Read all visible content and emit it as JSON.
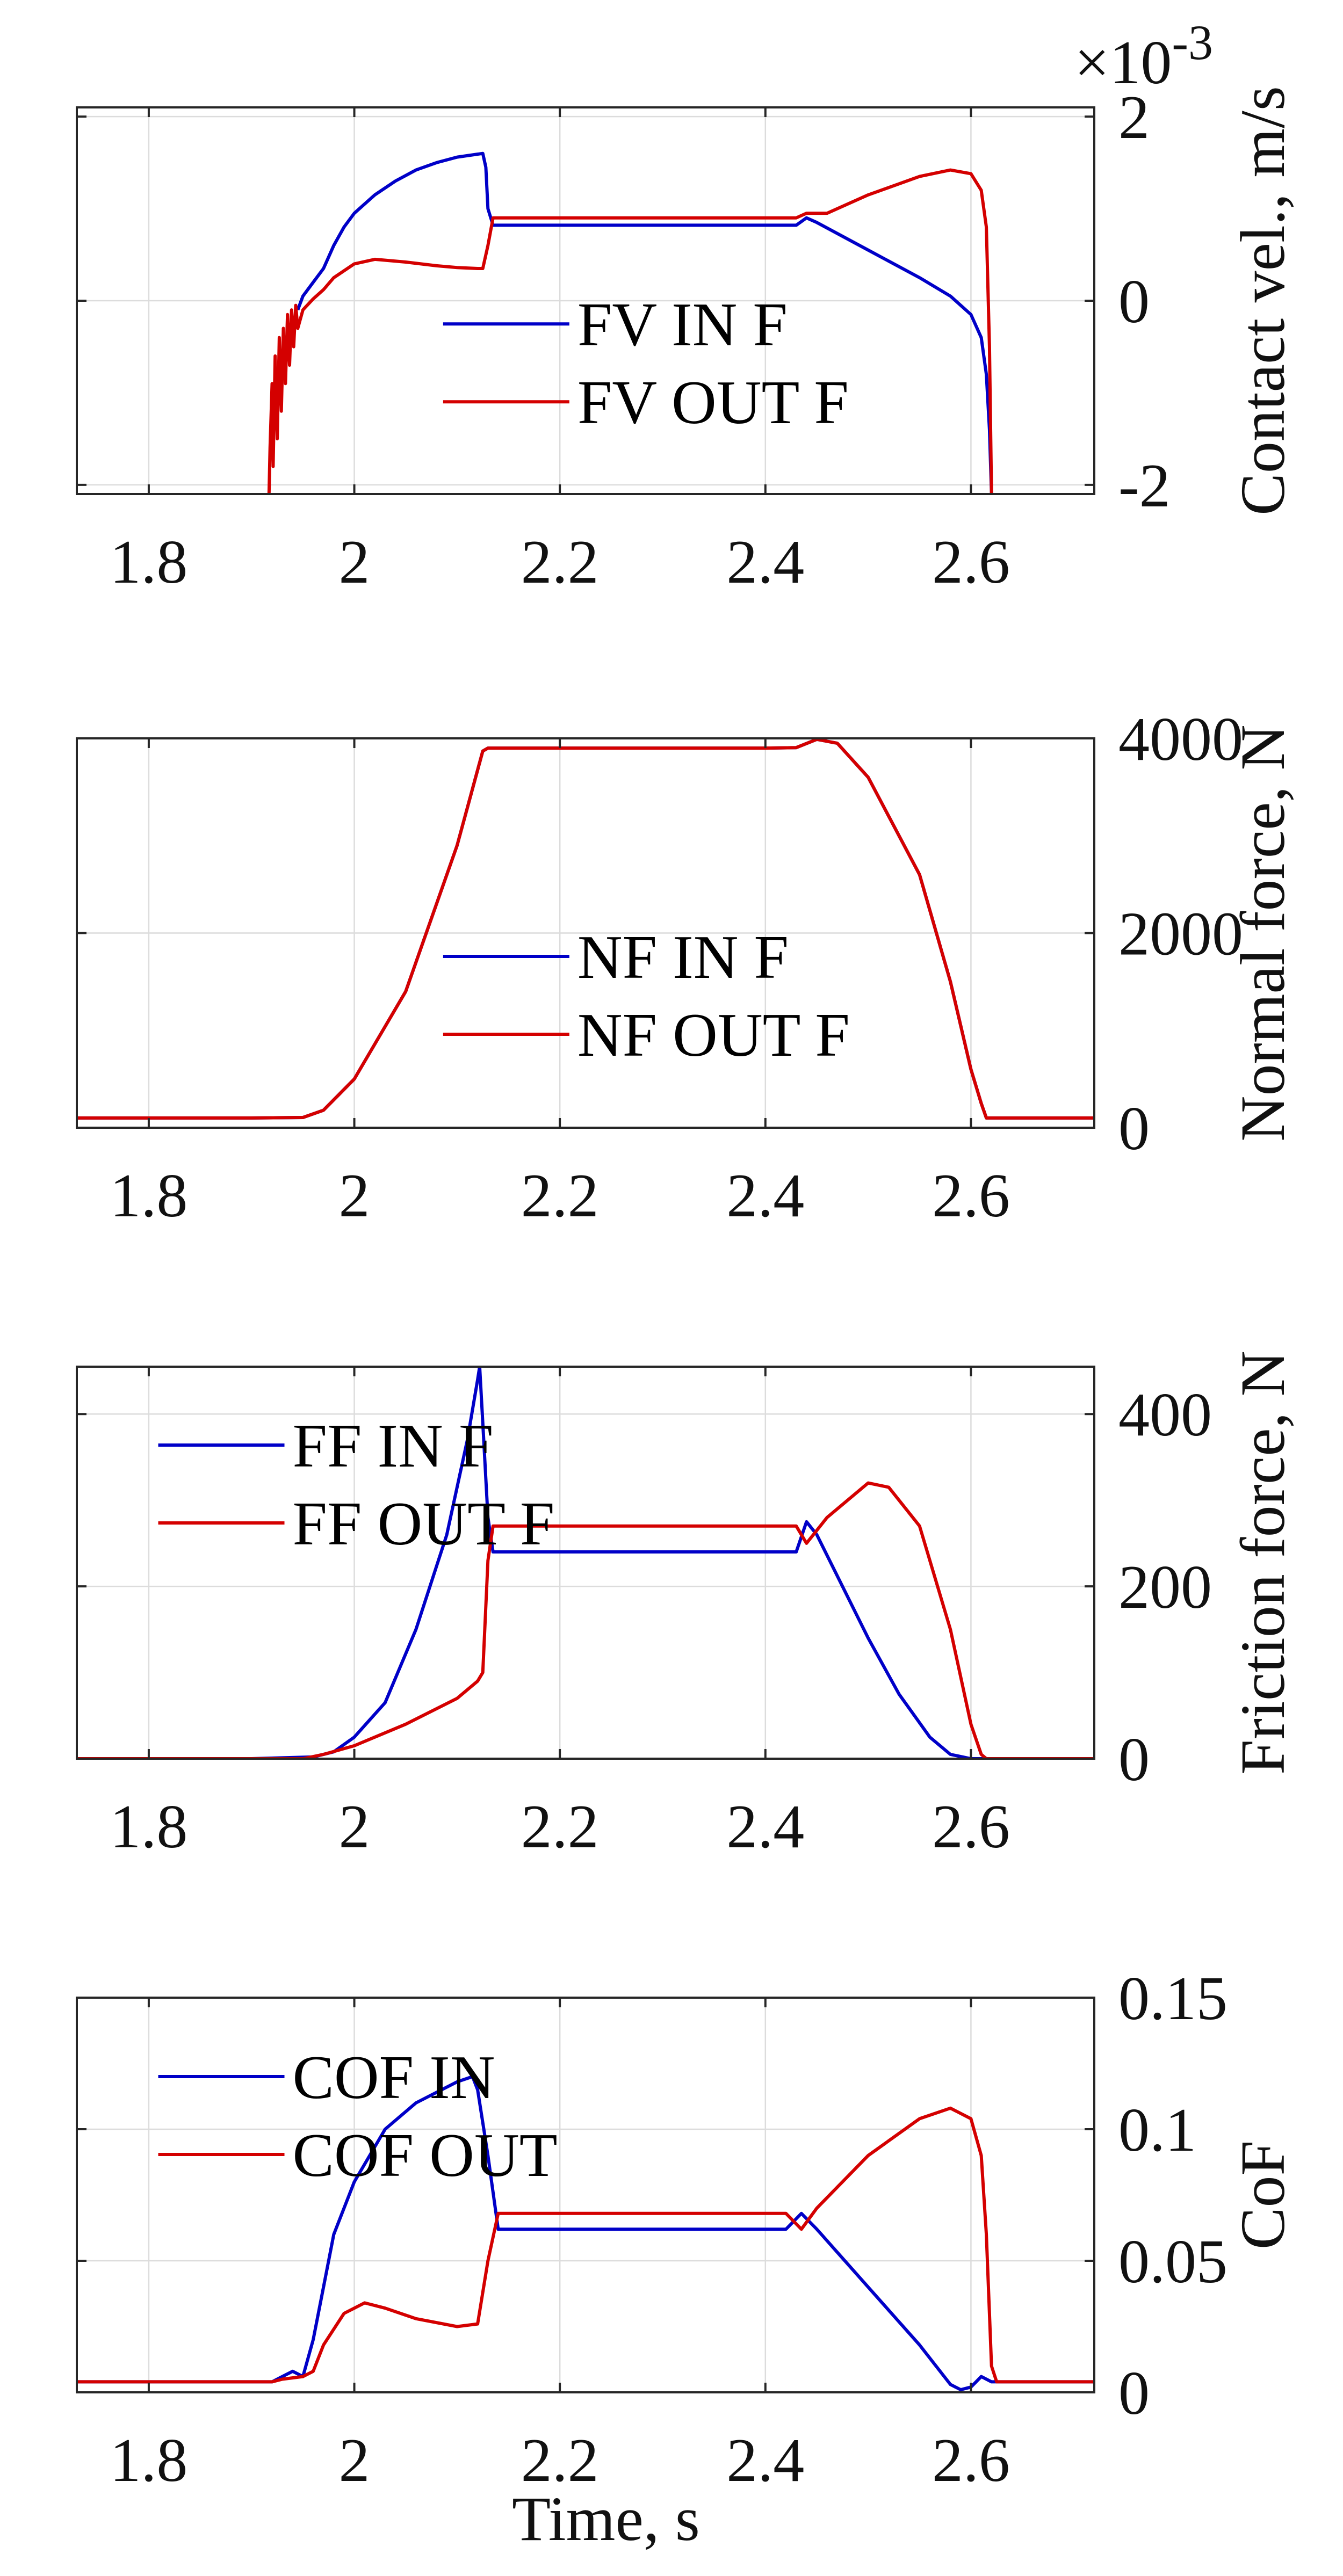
{
  "chart_data": [
    {
      "type": "line",
      "ylabel": "Contact vel., m/s",
      "y_multiplier": "×10",
      "y_multiplier_exp": "-3",
      "xlim": [
        1.73,
        2.72
      ],
      "ylim": [
        -2.1,
        2.1
      ],
      "xticks": [
        1.8,
        2.0,
        2.2,
        2.4,
        2.6
      ],
      "xtick_labels": [
        "1.8",
        "2",
        "2.2",
        "2.4",
        "2.6"
      ],
      "yticks": [
        -2,
        0,
        2
      ],
      "ytick_labels": [
        "-2",
        "0",
        "2"
      ],
      "grid": true,
      "legend_position": "center",
      "legend_pos": [
        0.36,
        0.28
      ],
      "series": [
        {
          "name": "FV IN F",
          "color": "#0000c8",
          "points": [
            [
              1.945,
              -0.1
            ],
            [
              1.95,
              0.05
            ],
            [
              1.96,
              0.2
            ],
            [
              1.97,
              0.35
            ],
            [
              1.98,
              0.6
            ],
            [
              1.99,
              0.8
            ],
            [
              2.0,
              0.95
            ],
            [
              2.02,
              1.15
            ],
            [
              2.04,
              1.3
            ],
            [
              2.06,
              1.42
            ],
            [
              2.08,
              1.5
            ],
            [
              2.1,
              1.56
            ],
            [
              2.125,
              1.6
            ],
            [
              2.128,
              1.45
            ],
            [
              2.13,
              1.0
            ],
            [
              2.135,
              0.82
            ],
            [
              2.2,
              0.82
            ],
            [
              2.3,
              0.82
            ],
            [
              2.4,
              0.82
            ],
            [
              2.43,
              0.82
            ],
            [
              2.44,
              0.9
            ],
            [
              2.45,
              0.85
            ],
            [
              2.5,
              0.55
            ],
            [
              2.55,
              0.25
            ],
            [
              2.58,
              0.05
            ],
            [
              2.6,
              -0.15
            ],
            [
              2.61,
              -0.4
            ],
            [
              2.615,
              -0.8
            ],
            [
              2.618,
              -1.4
            ],
            [
              2.62,
              -2.1
            ]
          ]
        },
        {
          "name": "FV OUT F",
          "color": "#d40000",
          "points": [
            [
              1.917,
              -2.1
            ],
            [
              1.918,
              -1.6
            ],
            [
              1.92,
              -0.9
            ],
            [
              1.921,
              -1.8
            ],
            [
              1.923,
              -0.6
            ],
            [
              1.925,
              -1.5
            ],
            [
              1.927,
              -0.4
            ],
            [
              1.929,
              -1.2
            ],
            [
              1.931,
              -0.3
            ],
            [
              1.933,
              -0.9
            ],
            [
              1.935,
              -0.15
            ],
            [
              1.937,
              -0.7
            ],
            [
              1.939,
              -0.1
            ],
            [
              1.941,
              -0.5
            ],
            [
              1.943,
              -0.05
            ],
            [
              1.945,
              -0.3
            ],
            [
              1.95,
              -0.1
            ],
            [
              1.96,
              0.02
            ],
            [
              1.97,
              0.12
            ],
            [
              1.98,
              0.25
            ],
            [
              2.0,
              0.4
            ],
            [
              2.02,
              0.45
            ],
            [
              2.05,
              0.42
            ],
            [
              2.08,
              0.38
            ],
            [
              2.1,
              0.36
            ],
            [
              2.12,
              0.35
            ],
            [
              2.125,
              0.35
            ],
            [
              2.13,
              0.6
            ],
            [
              2.135,
              0.9
            ],
            [
              2.2,
              0.9
            ],
            [
              2.3,
              0.9
            ],
            [
              2.4,
              0.9
            ],
            [
              2.43,
              0.9
            ],
            [
              2.44,
              0.95
            ],
            [
              2.46,
              0.95
            ],
            [
              2.5,
              1.15
            ],
            [
              2.55,
              1.35
            ],
            [
              2.58,
              1.42
            ],
            [
              2.6,
              1.38
            ],
            [
              2.61,
              1.2
            ],
            [
              2.615,
              0.8
            ],
            [
              2.618,
              -0.5
            ],
            [
              2.62,
              -2.1
            ]
          ]
        }
      ]
    },
    {
      "type": "line",
      "ylabel": "Normal force, N",
      "xlim": [
        1.73,
        2.72
      ],
      "ylim": [
        0,
        4000
      ],
      "xticks": [
        1.8,
        2.0,
        2.2,
        2.4,
        2.6
      ],
      "xtick_labels": [
        "1.8",
        "2",
        "2.2",
        "2.4",
        "2.6"
      ],
      "yticks": [
        0,
        2000,
        4000
      ],
      "ytick_labels": [
        "0",
        "2000",
        "4000"
      ],
      "grid": true,
      "legend_position": "center",
      "legend_pos": [
        0.36,
        0.28
      ],
      "series": [
        {
          "name": "NF IN F",
          "color": "#0000c8",
          "points": [
            [
              1.73,
              100
            ],
            [
              1.9,
              100
            ],
            [
              1.95,
              105
            ],
            [
              1.97,
              180
            ],
            [
              2.0,
              500
            ],
            [
              2.05,
              1400
            ],
            [
              2.1,
              2900
            ],
            [
              2.125,
              3870
            ],
            [
              2.13,
              3900
            ],
            [
              2.2,
              3900
            ],
            [
              2.3,
              3900
            ],
            [
              2.4,
              3900
            ],
            [
              2.43,
              3905
            ],
            [
              2.45,
              3990
            ],
            [
              2.47,
              3950
            ],
            [
              2.5,
              3600
            ],
            [
              2.55,
              2600
            ],
            [
              2.58,
              1500
            ],
            [
              2.6,
              600
            ],
            [
              2.61,
              250
            ],
            [
              2.615,
              100
            ],
            [
              2.72,
              100
            ]
          ]
        },
        {
          "name": "NF OUT F",
          "color": "#d40000",
          "points": [
            [
              1.73,
              100
            ],
            [
              1.9,
              100
            ],
            [
              1.95,
              105
            ],
            [
              1.97,
              180
            ],
            [
              2.0,
              500
            ],
            [
              2.05,
              1400
            ],
            [
              2.1,
              2900
            ],
            [
              2.125,
              3870
            ],
            [
              2.13,
              3900
            ],
            [
              2.2,
              3900
            ],
            [
              2.3,
              3900
            ],
            [
              2.4,
              3900
            ],
            [
              2.43,
              3905
            ],
            [
              2.45,
              3990
            ],
            [
              2.47,
              3950
            ],
            [
              2.5,
              3600
            ],
            [
              2.55,
              2600
            ],
            [
              2.58,
              1500
            ],
            [
              2.6,
              600
            ],
            [
              2.61,
              250
            ],
            [
              2.615,
              100
            ],
            [
              2.72,
              100
            ]
          ]
        }
      ]
    },
    {
      "type": "line",
      "ylabel": "Friction force, N",
      "xlim": [
        1.73,
        2.72
      ],
      "ylim": [
        0,
        455
      ],
      "xticks": [
        1.8,
        2.0,
        2.2,
        2.4,
        2.6
      ],
      "xtick_labels": [
        "1.8",
        "2",
        "2.2",
        "2.4",
        "2.6"
      ],
      "yticks": [
        0,
        200,
        400
      ],
      "ytick_labels": [
        "0",
        "200",
        "400"
      ],
      "grid": true,
      "legend_position": "top-left",
      "legend_pos": [
        0.08,
        0.2
      ],
      "series": [
        {
          "name": "FF IN F",
          "color": "#0000c8",
          "points": [
            [
              1.73,
              0
            ],
            [
              1.9,
              0
            ],
            [
              1.96,
              2
            ],
            [
              1.98,
              8
            ],
            [
              2.0,
              25
            ],
            [
              2.03,
              65
            ],
            [
              2.06,
              150
            ],
            [
              2.09,
              260
            ],
            [
              2.11,
              370
            ],
            [
              2.12,
              440
            ],
            [
              2.122,
              455
            ],
            [
              2.125,
              390
            ],
            [
              2.13,
              280
            ],
            [
              2.135,
              240
            ],
            [
              2.2,
              240
            ],
            [
              2.3,
              240
            ],
            [
              2.4,
              240
            ],
            [
              2.43,
              240
            ],
            [
              2.44,
              275
            ],
            [
              2.45,
              260
            ],
            [
              2.5,
              140
            ],
            [
              2.53,
              75
            ],
            [
              2.56,
              25
            ],
            [
              2.58,
              5
            ],
            [
              2.6,
              0
            ],
            [
              2.72,
              0
            ]
          ]
        },
        {
          "name": "FF OUT F",
          "color": "#d40000",
          "points": [
            [
              1.73,
              0
            ],
            [
              1.95,
              0
            ],
            [
              1.97,
              5
            ],
            [
              2.0,
              15
            ],
            [
              2.05,
              40
            ],
            [
              2.1,
              70
            ],
            [
              2.12,
              90
            ],
            [
              2.125,
              100
            ],
            [
              2.13,
              230
            ],
            [
              2.135,
              270
            ],
            [
              2.2,
              270
            ],
            [
              2.3,
              270
            ],
            [
              2.4,
              270
            ],
            [
              2.43,
              270
            ],
            [
              2.44,
              250
            ],
            [
              2.46,
              280
            ],
            [
              2.5,
              320
            ],
            [
              2.52,
              315
            ],
            [
              2.55,
              270
            ],
            [
              2.58,
              150
            ],
            [
              2.6,
              40
            ],
            [
              2.61,
              5
            ],
            [
              2.615,
              0
            ],
            [
              2.72,
              0
            ]
          ]
        }
      ]
    },
    {
      "type": "line",
      "xlabel": "Time, s",
      "ylabel": "CoF",
      "xlim": [
        1.73,
        2.72
      ],
      "ylim": [
        0,
        0.15
      ],
      "xticks": [
        1.8,
        2.0,
        2.2,
        2.4,
        2.6
      ],
      "xtick_labels": [
        "1.8",
        "2",
        "2.2",
        "2.4",
        "2.6"
      ],
      "yticks": [
        0,
        0.05,
        0.1,
        0.15
      ],
      "ytick_labels": [
        "0",
        "0.05",
        "0.1",
        "0.15"
      ],
      "grid": true,
      "legend_position": "top-left",
      "legend_pos": [
        0.08,
        0.2
      ],
      "series": [
        {
          "name": "COF IN",
          "color": "#0000c8",
          "points": [
            [
              1.73,
              0.004
            ],
            [
              1.92,
              0.004
            ],
            [
              1.93,
              0.006
            ],
            [
              1.94,
              0.008
            ],
            [
              1.95,
              0.006
            ],
            [
              1.96,
              0.02
            ],
            [
              1.97,
              0.04
            ],
            [
              1.98,
              0.06
            ],
            [
              2.0,
              0.08
            ],
            [
              2.03,
              0.1
            ],
            [
              2.06,
              0.11
            ],
            [
              2.1,
              0.118
            ],
            [
              2.115,
              0.12
            ],
            [
              2.12,
              0.115
            ],
            [
              2.13,
              0.09
            ],
            [
              2.14,
              0.062
            ],
            [
              2.2,
              0.062
            ],
            [
              2.3,
              0.062
            ],
            [
              2.4,
              0.062
            ],
            [
              2.42,
              0.062
            ],
            [
              2.435,
              0.068
            ],
            [
              2.45,
              0.062
            ],
            [
              2.5,
              0.04
            ],
            [
              2.55,
              0.018
            ],
            [
              2.58,
              0.003
            ],
            [
              2.59,
              0.001
            ],
            [
              2.6,
              0.002
            ],
            [
              2.61,
              0.006
            ],
            [
              2.62,
              0.004
            ],
            [
              2.72,
              0.004
            ]
          ]
        },
        {
          "name": "COF OUT",
          "color": "#d40000",
          "points": [
            [
              1.73,
              0.004
            ],
            [
              1.92,
              0.004
            ],
            [
              1.93,
              0.005
            ],
            [
              1.95,
              0.006
            ],
            [
              1.96,
              0.008
            ],
            [
              1.97,
              0.018
            ],
            [
              1.99,
              0.03
            ],
            [
              2.01,
              0.034
            ],
            [
              2.03,
              0.032
            ],
            [
              2.06,
              0.028
            ],
            [
              2.1,
              0.025
            ],
            [
              2.12,
              0.026
            ],
            [
              2.13,
              0.05
            ],
            [
              2.14,
              0.068
            ],
            [
              2.2,
              0.068
            ],
            [
              2.3,
              0.068
            ],
            [
              2.4,
              0.068
            ],
            [
              2.42,
              0.068
            ],
            [
              2.435,
              0.062
            ],
            [
              2.45,
              0.07
            ],
            [
              2.5,
              0.09
            ],
            [
              2.55,
              0.104
            ],
            [
              2.58,
              0.108
            ],
            [
              2.6,
              0.104
            ],
            [
              2.61,
              0.09
            ],
            [
              2.615,
              0.06
            ],
            [
              2.62,
              0.01
            ],
            [
              2.625,
              0.004
            ],
            [
              2.72,
              0.004
            ]
          ]
        }
      ]
    }
  ]
}
